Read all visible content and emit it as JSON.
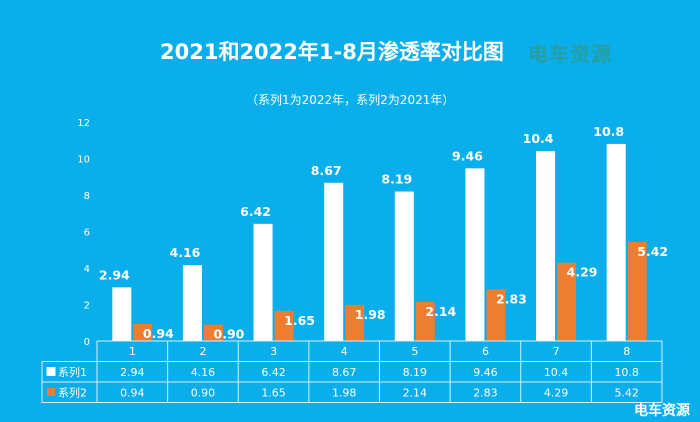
{
  "chart_data": {
    "type": "bar",
    "title": "2021和2022年1-8月渗透率对比图",
    "subtitle": "（系列1为2022年，系列2为2021年）",
    "categories": [
      "1",
      "2",
      "3",
      "4",
      "5",
      "6",
      "7",
      "8"
    ],
    "series": [
      {
        "name": "系列1",
        "color": "#ffffff",
        "values": [
          2.94,
          4.16,
          6.42,
          8.67,
          8.19,
          9.46,
          10.4,
          10.8
        ],
        "labels": [
          "2.94",
          "4.16",
          "6.42",
          "8.67",
          "8.19",
          "9.46",
          "10.4",
          "10.8"
        ]
      },
      {
        "name": "系列2",
        "color": "#ed7d31",
        "values": [
          0.94,
          0.9,
          1.65,
          1.98,
          2.14,
          2.83,
          4.29,
          5.42
        ],
        "labels": [
          "0.94",
          "0.90",
          "1.65",
          "1.98",
          "2.14",
          "2.83",
          "4.29",
          "5.42"
        ]
      }
    ],
    "ylim": [
      0,
      12
    ],
    "yticks": [
      "0",
      "2",
      "4",
      "6",
      "8",
      "10",
      "12"
    ],
    "grid": false,
    "legend": "data-table"
  },
  "logo_text": "电车资源",
  "watermark_text": "电车资源"
}
